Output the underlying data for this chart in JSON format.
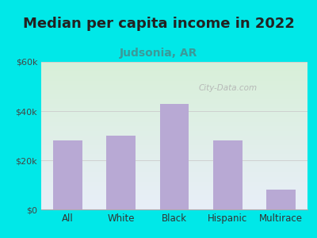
{
  "title": "Median per capita income in 2022",
  "subtitle": "Judsonia, AR",
  "categories": [
    "All",
    "White",
    "Black",
    "Hispanic",
    "Multirace"
  ],
  "values": [
    28000,
    30000,
    43000,
    28000,
    8000
  ],
  "bar_color": "#b8a9d4",
  "title_fontsize": 13,
  "subtitle_fontsize": 10,
  "subtitle_color": "#3a9a9a",
  "title_color": "#222222",
  "bg_outer": "#00e8e8",
  "bg_plot_top_left": "#d8f0d8",
  "bg_plot_bottom_right": "#e8eef8",
  "ylim": [
    0,
    60000
  ],
  "yticks": [
    0,
    20000,
    40000,
    60000
  ],
  "ytick_labels": [
    "$0",
    "$20k",
    "$40k",
    "$60k"
  ],
  "watermark": "City-Data.com",
  "grid_color": "#cccccc"
}
